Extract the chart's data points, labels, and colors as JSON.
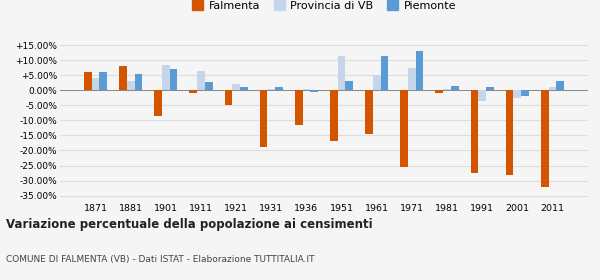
{
  "years": [
    1871,
    1881,
    1901,
    1911,
    1921,
    1931,
    1936,
    1951,
    1961,
    1971,
    1981,
    1991,
    2001,
    2011
  ],
  "falmenta": [
    6.2,
    8.0,
    -8.5,
    -1.0,
    -5.0,
    -19.0,
    -11.5,
    -17.0,
    -14.5,
    -25.5,
    -1.0,
    -27.5,
    -28.0,
    -32.0
  ],
  "provincia_vb": [
    4.0,
    3.2,
    8.5,
    6.5,
    2.0,
    0.5,
    0.5,
    11.5,
    5.0,
    7.5,
    0.5,
    -3.5,
    -2.5,
    1.0
  ],
  "piemonte": [
    6.2,
    5.5,
    7.2,
    2.8,
    1.2,
    1.2,
    -0.5,
    3.0,
    11.5,
    13.0,
    1.5,
    1.2,
    -2.0,
    3.2
  ],
  "color_falmenta": "#d45500",
  "color_provincia": "#c5d5ea",
  "color_piemonte": "#5b9bd5",
  "title": "Variazione percentuale della popolazione ai censimenti",
  "subtitle": "COMUNE DI FALMENTA (VB) - Dati ISTAT - Elaborazione TUTTITALIA.IT",
  "legend_labels": [
    "Falmenta",
    "Provincia di VB",
    "Piemonte"
  ],
  "ylim": [
    -37,
    17
  ],
  "yticks": [
    -35,
    -30,
    -25,
    -20,
    -15,
    -10,
    -5,
    0,
    5,
    10,
    15
  ],
  "background_color": "#f5f5f5",
  "grid_color": "#dddddd"
}
